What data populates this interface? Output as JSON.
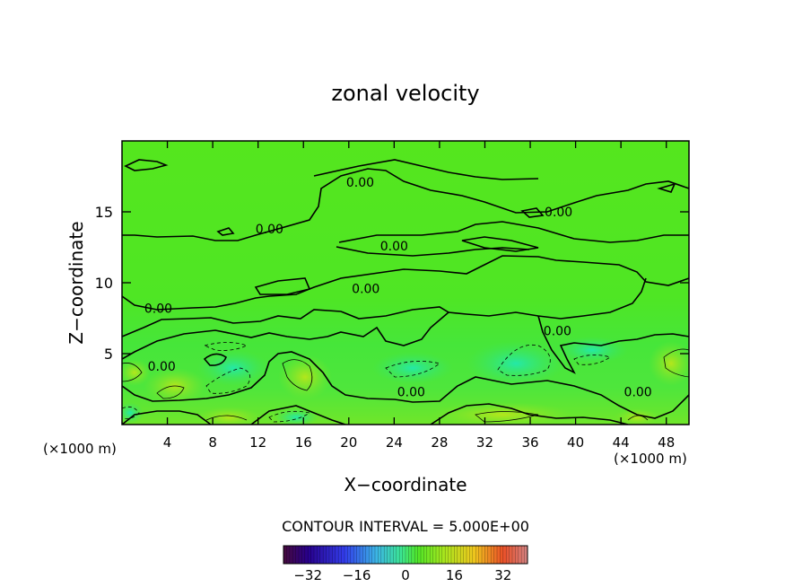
{
  "chart_data": {
    "type": "heatmap",
    "title": "zonal velocity",
    "xlabel": "X−coordinate",
    "ylabel": "Z−coordinate",
    "x_scale_note": "(×1000 m)",
    "z_scale_note": "(×1000 m)",
    "xlim": [
      0,
      50
    ],
    "ylim": [
      0,
      20
    ],
    "x_ticks": [
      4,
      8,
      12,
      16,
      20,
      24,
      28,
      32,
      36,
      40,
      44,
      48
    ],
    "y_ticks": [
      5,
      10,
      15
    ],
    "contour_interval_text": "CONTOUR INTERVAL = 5.000E+00",
    "contour_labels": [
      {
        "text": "0.00",
        "x": 21,
        "z": 17.1
      },
      {
        "text": "0.00",
        "x": 38.5,
        "z": 15.0
      },
      {
        "text": "0.00",
        "x": 13,
        "z": 13.8
      },
      {
        "text": "0.00",
        "x": 24,
        "z": 12.6
      },
      {
        "text": "0.00",
        "x": 21.5,
        "z": 9.6
      },
      {
        "text": "0.00",
        "x": 3.2,
        "z": 8.2
      },
      {
        "text": "0.00",
        "x": 38.4,
        "z": 6.6
      },
      {
        "text": "0.00",
        "x": 3.5,
        "z": 4.1
      },
      {
        "text": "0.00",
        "x": 25.5,
        "z": 2.3
      },
      {
        "text": "0.00",
        "x": 45.5,
        "z": 2.3
      }
    ],
    "colorbar": {
      "min": -40,
      "max": 40,
      "ticks": [
        -32,
        -16,
        0,
        16,
        32
      ],
      "tick_labels": [
        "−32",
        "−16",
        "0",
        "16",
        "32"
      ]
    }
  }
}
